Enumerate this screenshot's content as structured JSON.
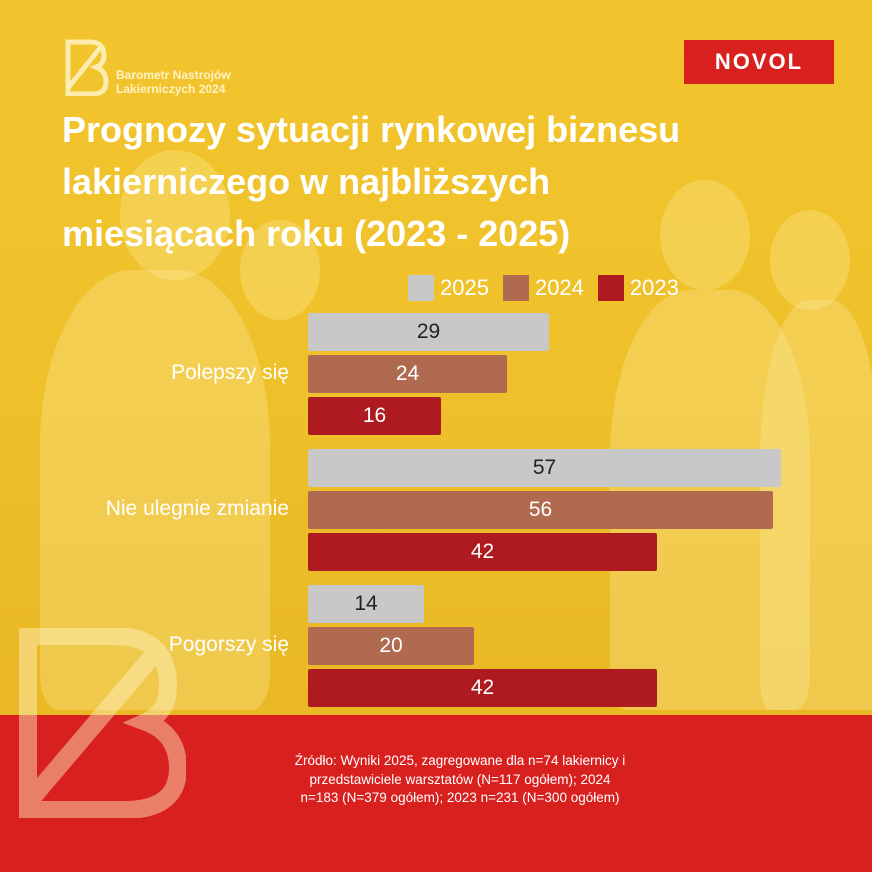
{
  "brand": {
    "name_line1": "Barometr Nastrojów",
    "name_line2": "Lakierniczych 2024",
    "partner": "NOVOL"
  },
  "title": {
    "line1": "Prognozy sytuacji rynkowej biznesu",
    "line2": "lakierniczego w najbliższych",
    "line3": "miesiącach roku (2023 - 2025)"
  },
  "footer": {
    "source_line1": "Źródło: Wyniki 2025, zagregowane dla n=74 lakiernicy i",
    "source_line2": "przedstawiciele warsztatów (N=117 ogółem); 2024",
    "source_line3": "n=183 (N=379 ogółem); 2023 n=231 (N=300 ogółem)"
  },
  "colors": {
    "background": "#f2c52e",
    "footer": "#d8201f",
    "s2025": "#c8c8c8",
    "s2024": "#b06a50",
    "s2023": "#ad1a20"
  },
  "chart_data": {
    "type": "bar",
    "orientation": "horizontal",
    "categories": [
      "Polepszy się",
      "Nie ulegnie zmianie",
      "Pogorszy się"
    ],
    "series": [
      {
        "name": "2025",
        "values": [
          29,
          57,
          14
        ],
        "color": "#c8c8c8"
      },
      {
        "name": "2024",
        "values": [
          24,
          56,
          20
        ],
        "color": "#b06a50"
      },
      {
        "name": "2023",
        "values": [
          16,
          42,
          42
        ],
        "color": "#ad1a20"
      }
    ],
    "xlim": [
      0,
      57
    ],
    "grid": false,
    "legend": "top"
  }
}
